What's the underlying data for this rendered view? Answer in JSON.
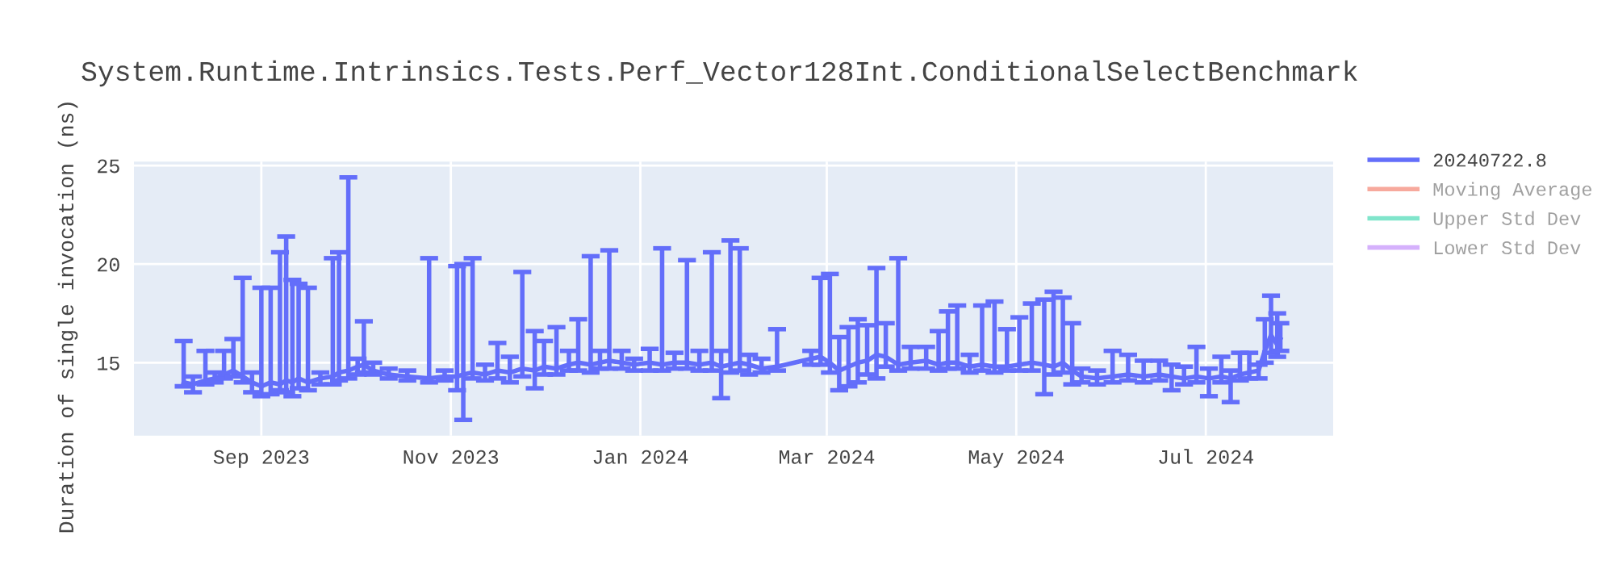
{
  "chart_data": {
    "type": "line",
    "title": "System.Runtime.Intrinsics.Tests.Perf_Vector128Int.ConditionalSelectBenchmark",
    "ylabel": "Duration of single invocation (ns)",
    "xlim": [
      "2023-07-22",
      "2024-08-11"
    ],
    "xticks": [
      {
        "value": "2023-09-01",
        "label": "Sep 2023"
      },
      {
        "value": "2023-11-01",
        "label": "Nov 2023"
      },
      {
        "value": "2024-01-01",
        "label": "Jan 2024"
      },
      {
        "value": "2024-03-01",
        "label": "Mar 2024"
      },
      {
        "value": "2024-05-01",
        "label": "May 2024"
      },
      {
        "value": "2024-07-01",
        "label": "Jul 2024"
      }
    ],
    "ylim": [
      11.3,
      25.2
    ],
    "yticks": [
      15,
      20,
      25
    ],
    "grid": true,
    "legend": "top right",
    "marker": "none",
    "line_style": "solid",
    "series": [
      {
        "name": "20240722.8",
        "color": "#636efa",
        "x": [
          "2023-08-07",
          "2023-08-10",
          "2023-08-14",
          "2023-08-17",
          "2023-08-20",
          "2023-08-23",
          "2023-08-26",
          "2023-08-29",
          "2023-09-01",
          "2023-09-04",
          "2023-09-07",
          "2023-09-09",
          "2023-09-11",
          "2023-09-13",
          "2023-09-16",
          "2023-09-20",
          "2023-09-24",
          "2023-09-26",
          "2023-09-29",
          "2023-10-02",
          "2023-10-04",
          "2023-10-07",
          "2023-10-12",
          "2023-10-18",
          "2023-10-25",
          "2023-10-30",
          "2023-11-03",
          "2023-11-05",
          "2023-11-08",
          "2023-11-12",
          "2023-11-16",
          "2023-11-20",
          "2023-11-24",
          "2023-11-28",
          "2023-12-01",
          "2023-12-05",
          "2023-12-09",
          "2023-12-12",
          "2023-12-16",
          "2023-12-19",
          "2023-12-22",
          "2023-12-26",
          "2023-12-30",
          "2024-01-04",
          "2024-01-08",
          "2024-01-12",
          "2024-01-16",
          "2024-01-20",
          "2024-01-24",
          "2024-01-27",
          "2024-01-30",
          "2024-02-02",
          "2024-02-05",
          "2024-02-09",
          "2024-02-14",
          "2024-02-25",
          "2024-02-28",
          "2024-03-02",
          "2024-03-05",
          "2024-03-08",
          "2024-03-11",
          "2024-03-14",
          "2024-03-17",
          "2024-03-20",
          "2024-03-24",
          "2024-03-28",
          "2024-04-02",
          "2024-04-06",
          "2024-04-09",
          "2024-04-12",
          "2024-04-16",
          "2024-04-20",
          "2024-04-24",
          "2024-04-28",
          "2024-05-02",
          "2024-05-06",
          "2024-05-10",
          "2024-05-13",
          "2024-05-16",
          "2024-05-19",
          "2024-05-22",
          "2024-05-27",
          "2024-06-01",
          "2024-06-06",
          "2024-06-11",
          "2024-06-16",
          "2024-06-20",
          "2024-06-24",
          "2024-06-28",
          "2024-07-02",
          "2024-07-06",
          "2024-07-09",
          "2024-07-12",
          "2024-07-15",
          "2024-07-18",
          "2024-07-20",
          "2024-07-22",
          "2024-07-24",
          "2024-07-25"
        ],
        "values": [
          14.0,
          13.9,
          14.1,
          14.2,
          14.4,
          14.6,
          14.3,
          14.0,
          13.8,
          14.0,
          13.9,
          14.1,
          14.0,
          14.2,
          14.0,
          14.2,
          14.3,
          14.5,
          14.6,
          14.8,
          14.9,
          14.6,
          14.4,
          14.3,
          14.2,
          14.3,
          14.3,
          14.4,
          14.5,
          14.4,
          14.6,
          14.5,
          14.7,
          14.6,
          14.8,
          14.7,
          14.9,
          15.0,
          14.9,
          15.0,
          15.1,
          15.0,
          14.9,
          15.0,
          14.9,
          15.0,
          15.0,
          14.9,
          15.0,
          14.8,
          14.9,
          15.0,
          14.9,
          14.7,
          14.8,
          15.2,
          15.3,
          15.0,
          14.6,
          14.8,
          15.0,
          15.1,
          15.4,
          15.3,
          14.9,
          15.0,
          15.1,
          14.9,
          15.0,
          15.0,
          14.8,
          14.9,
          14.8,
          14.8,
          14.9,
          15.0,
          14.9,
          14.8,
          15.0,
          14.6,
          14.3,
          14.2,
          14.3,
          14.4,
          14.3,
          14.4,
          14.3,
          14.2,
          14.3,
          14.2,
          14.3,
          14.2,
          14.4,
          14.5,
          14.6,
          15.6,
          16.4,
          15.9,
          16.2
        ],
        "errors": [
          [
            13.8,
            16.1
          ],
          [
            13.5,
            14.3
          ],
          [
            13.9,
            15.6
          ],
          [
            14.0,
            14.5
          ],
          [
            14.2,
            15.6
          ],
          [
            14.3,
            16.2
          ],
          [
            14.0,
            19.3
          ],
          [
            13.5,
            14.5
          ],
          [
            13.3,
            18.8
          ],
          [
            13.4,
            18.8
          ],
          [
            13.6,
            20.6
          ],
          [
            13.5,
            21.4
          ],
          [
            13.3,
            19.2
          ],
          [
            13.7,
            19.0
          ],
          [
            13.6,
            18.8
          ],
          [
            13.9,
            14.5
          ],
          [
            13.9,
            20.3
          ],
          [
            14.1,
            20.6
          ],
          [
            14.2,
            24.4
          ],
          [
            14.4,
            15.2
          ],
          [
            14.5,
            17.1
          ],
          [
            14.4,
            15.0
          ],
          [
            14.2,
            14.7
          ],
          [
            14.1,
            14.6
          ],
          [
            14.0,
            20.3
          ],
          [
            14.1,
            14.6
          ],
          [
            13.6,
            19.9
          ],
          [
            12.1,
            20.0
          ],
          [
            14.2,
            20.3
          ],
          [
            14.1,
            14.9
          ],
          [
            14.2,
            16.0
          ],
          [
            14.0,
            15.3
          ],
          [
            14.3,
            19.6
          ],
          [
            13.7,
            16.6
          ],
          [
            14.4,
            16.1
          ],
          [
            14.4,
            16.8
          ],
          [
            14.6,
            15.6
          ],
          [
            14.6,
            17.2
          ],
          [
            14.5,
            20.4
          ],
          [
            14.7,
            15.6
          ],
          [
            14.7,
            20.7
          ],
          [
            14.7,
            15.6
          ],
          [
            14.6,
            15.2
          ],
          [
            14.6,
            15.7
          ],
          [
            14.6,
            20.8
          ],
          [
            14.7,
            15.5
          ],
          [
            14.7,
            20.2
          ],
          [
            14.6,
            15.6
          ],
          [
            14.6,
            20.6
          ],
          [
            13.2,
            15.6
          ],
          [
            14.5,
            21.2
          ],
          [
            14.6,
            20.8
          ],
          [
            14.4,
            15.4
          ],
          [
            14.5,
            15.2
          ],
          [
            14.6,
            16.7
          ],
          [
            14.9,
            15.6
          ],
          [
            14.9,
            19.3
          ],
          [
            14.5,
            19.5
          ],
          [
            13.6,
            16.3
          ],
          [
            13.8,
            16.8
          ],
          [
            14.0,
            17.2
          ],
          [
            14.4,
            16.9
          ],
          [
            14.2,
            19.8
          ],
          [
            14.8,
            17.0
          ],
          [
            14.6,
            20.3
          ],
          [
            14.7,
            15.8
          ],
          [
            14.7,
            15.8
          ],
          [
            14.6,
            16.6
          ],
          [
            14.7,
            17.6
          ],
          [
            14.7,
            17.9
          ],
          [
            14.5,
            15.4
          ],
          [
            14.6,
            17.9
          ],
          [
            14.5,
            18.1
          ],
          [
            14.6,
            16.7
          ],
          [
            14.6,
            17.3
          ],
          [
            14.6,
            18.0
          ],
          [
            13.4,
            18.2
          ],
          [
            14.4,
            18.6
          ],
          [
            14.5,
            18.3
          ],
          [
            13.9,
            17.0
          ],
          [
            14.0,
            14.7
          ],
          [
            13.9,
            14.6
          ],
          [
            14.0,
            15.6
          ],
          [
            14.1,
            15.4
          ],
          [
            14.0,
            15.1
          ],
          [
            14.1,
            15.1
          ],
          [
            13.6,
            14.9
          ],
          [
            13.9,
            14.8
          ],
          [
            14.0,
            15.8
          ],
          [
            13.3,
            14.7
          ],
          [
            14.0,
            15.3
          ],
          [
            13.0,
            14.6
          ],
          [
            14.1,
            15.5
          ],
          [
            14.2,
            15.5
          ],
          [
            14.2,
            14.9
          ],
          [
            15.0,
            17.2
          ],
          [
            15.5,
            18.4
          ],
          [
            15.3,
            17.5
          ],
          [
            15.6,
            17.0
          ]
        ]
      },
      {
        "name": "Moving Average",
        "color": "#f7a99d"
      },
      {
        "name": "Upper Std Dev",
        "color": "#80e5cb"
      },
      {
        "name": "Lower Std Dev",
        "color": "#d5b1fc"
      }
    ]
  }
}
